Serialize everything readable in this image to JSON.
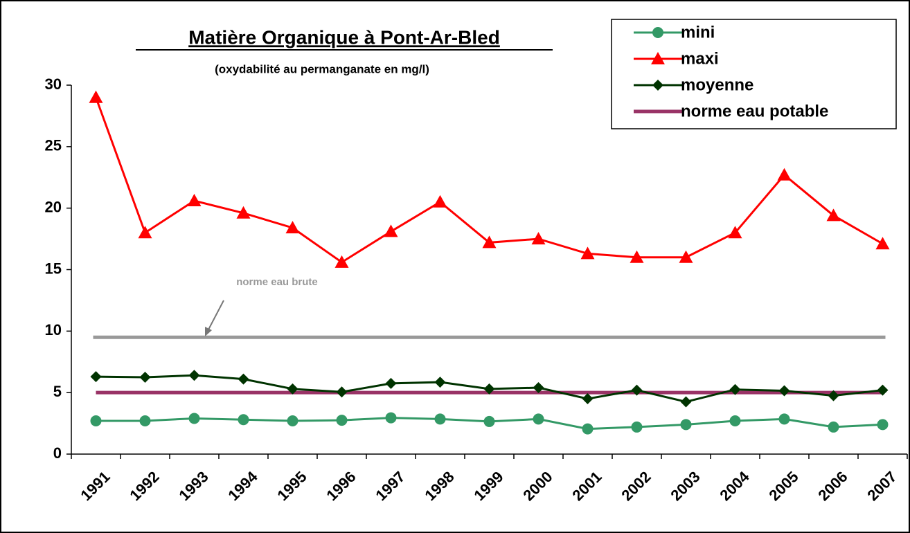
{
  "chart_data": {
    "type": "line",
    "title": "Matière Organique à Pont-Ar-Bled",
    "subtitle": "(oxydabilité au permanganate en mg/l)",
    "categories": [
      "1991",
      "1992",
      "1993",
      "1994",
      "1995",
      "1996",
      "1997",
      "1998",
      "1999",
      "2000",
      "2001",
      "2002",
      "2003",
      "2004",
      "2005",
      "2006",
      "2007"
    ],
    "series": [
      {
        "name": "mini",
        "color": "#339966",
        "marker": "circle",
        "values": [
          2.7,
          2.7,
          2.9,
          2.8,
          2.7,
          2.75,
          2.95,
          2.85,
          2.65,
          2.85,
          2.05,
          2.2,
          2.4,
          2.7,
          2.85,
          2.2,
          2.4
        ]
      },
      {
        "name": "maxi",
        "color": "#ff0000",
        "marker": "triangle",
        "values": [
          29,
          18,
          20.6,
          19.6,
          18.4,
          15.6,
          18.1,
          20.5,
          17.2,
          17.5,
          16.3,
          16,
          16,
          18,
          22.7,
          19.4,
          17.1
        ]
      },
      {
        "name": "moyenne",
        "color": "#003300",
        "marker": "diamond",
        "values": [
          6.3,
          6.25,
          6.4,
          6.1,
          5.3,
          5.05,
          5.75,
          5.85,
          5.3,
          5.4,
          4.5,
          5.2,
          4.25,
          5.25,
          5.15,
          4.75,
          5.2
        ]
      },
      {
        "name": "norme eau potable",
        "color": "#993366",
        "marker": "none",
        "values": [
          5,
          5,
          5,
          5,
          5,
          5,
          5,
          5,
          5,
          5,
          5,
          5,
          5,
          5,
          5,
          5,
          5
        ]
      }
    ],
    "reference_line": {
      "label": "norme eau brute",
      "value": 9.5,
      "color": "#999999"
    },
    "ylim": [
      0,
      30
    ],
    "yticks": [
      0,
      5,
      10,
      15,
      20,
      25,
      30
    ],
    "legend": "top-right",
    "grid": false
  }
}
